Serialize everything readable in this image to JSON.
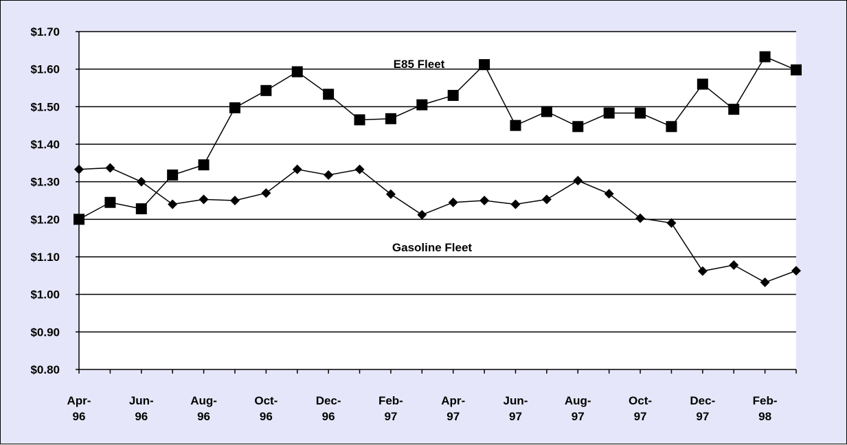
{
  "colors": {
    "background": "#e6e6fa",
    "plot_area": "#ffffff",
    "series": "#000000"
  },
  "chart_data": {
    "type": "line",
    "title": "",
    "xlabel": "",
    "ylabel": "",
    "ylim": [
      0.8,
      1.7
    ],
    "y_ticks": [
      "$1.70",
      "$1.60",
      "$1.50",
      "$1.40",
      "$1.30",
      "$1.20",
      "$1.10",
      "$1.00",
      "$0.90",
      "$0.80"
    ],
    "y_tick_values": [
      1.7,
      1.6,
      1.5,
      1.4,
      1.3,
      1.2,
      1.1,
      1.0,
      0.9,
      0.8
    ],
    "x_labels": [
      {
        "line1": "Apr-",
        "line2": "96"
      },
      {
        "line1": "Jun-",
        "line2": "96"
      },
      {
        "line1": "Aug-",
        "line2": "96"
      },
      {
        "line1": "Oct-",
        "line2": "96"
      },
      {
        "line1": "Dec-",
        "line2": "96"
      },
      {
        "line1": "Feb-",
        "line2": "97"
      },
      {
        "line1": "Apr-",
        "line2": "97"
      },
      {
        "line1": "Jun-",
        "line2": "97"
      },
      {
        "line1": "Aug-",
        "line2": "97"
      },
      {
        "line1": "Oct-",
        "line2": "97"
      },
      {
        "line1": "Dec-",
        "line2": "97"
      },
      {
        "line1": "Feb-",
        "line2": "98"
      }
    ],
    "grid": true,
    "legend": "none",
    "series": [
      {
        "name": "E85 Fleet",
        "marker": "square",
        "values": [
          1.2,
          1.245,
          1.228,
          1.318,
          1.345,
          1.497,
          1.543,
          1.593,
          1.533,
          1.465,
          1.468,
          1.505,
          1.53,
          1.612,
          1.45,
          1.487,
          1.447,
          1.483,
          1.483,
          1.447,
          1.56,
          1.493,
          1.633,
          1.598
        ]
      },
      {
        "name": "Gasoline Fleet",
        "marker": "diamond",
        "values": [
          1.333,
          1.337,
          1.3,
          1.24,
          1.253,
          1.25,
          1.27,
          1.333,
          1.318,
          1.333,
          1.267,
          1.212,
          1.245,
          1.25,
          1.24,
          1.253,
          1.303,
          1.268,
          1.203,
          1.19,
          1.062,
          1.078,
          1.032,
          1.063
        ]
      }
    ]
  }
}
